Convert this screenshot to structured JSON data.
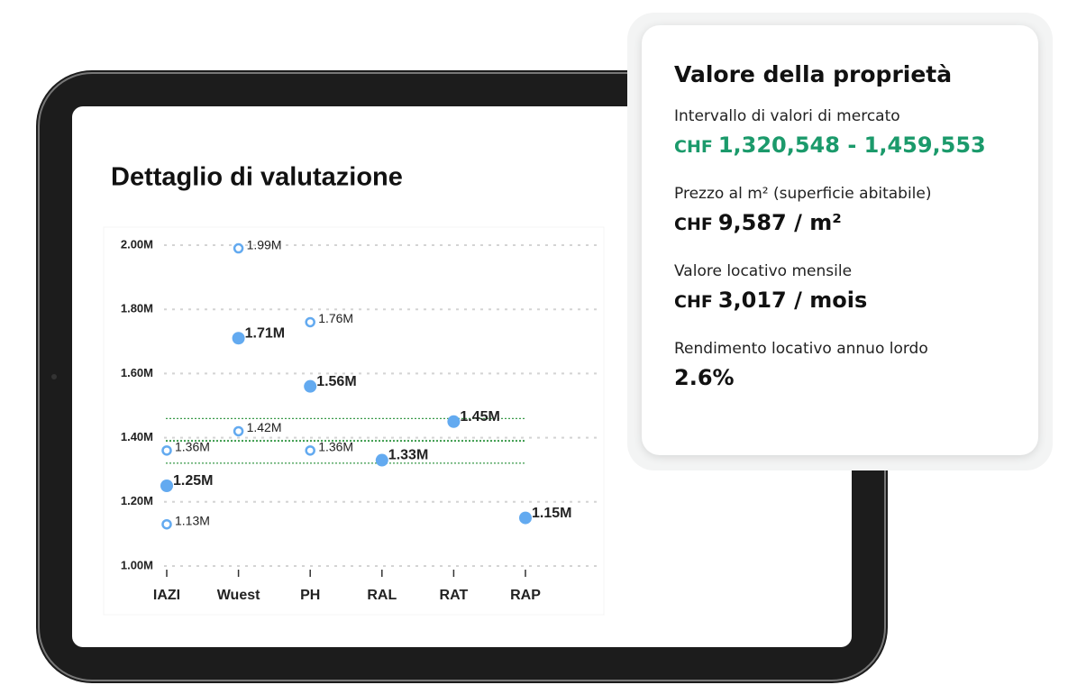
{
  "chart_data": {
    "type": "scatter",
    "title": "Dettaglio di valutazione",
    "categories": [
      "IAZI",
      "Wuest",
      "PH",
      "RAL",
      "RAT",
      "RAP"
    ],
    "series": [
      {
        "style": "filled",
        "color": "#63aaf0",
        "values": [
          1250000,
          1710000,
          1560000,
          1330000,
          1450000,
          1150000
        ],
        "value_labels": [
          "1.25M",
          "1.71M",
          "1.56M",
          "1.33M",
          "1.45M",
          "1.15M"
        ]
      },
      {
        "style": "hollow",
        "color": "#63aaf0",
        "values": [
          1360000,
          1990000,
          1760000,
          null,
          null,
          null
        ],
        "value_labels": [
          "1.36M",
          "1.99M",
          "1.76M",
          null,
          null,
          null
        ]
      },
      {
        "style": "hollow",
        "color": "#63aaf0",
        "values": [
          1130000,
          1420000,
          1360000,
          null,
          null,
          null
        ],
        "value_labels": [
          "1.13M",
          "1.42M",
          "1.36M",
          null,
          null,
          null
        ]
      }
    ],
    "reference_lines": [
      1320548,
      1390051,
      1459553
    ],
    "reference_color": "#3a9a4a",
    "ylim": [
      1000000,
      2000000
    ],
    "yticks": [
      {
        "value": 1000000,
        "label": "1.00M"
      },
      {
        "value": 1200000,
        "label": "1.20M"
      },
      {
        "value": 1400000,
        "label": "1.40M"
      },
      {
        "value": 1600000,
        "label": "1.60M"
      },
      {
        "value": 1800000,
        "label": "1.80M"
      },
      {
        "value": 2000000,
        "label": "2.00M"
      }
    ],
    "grid": true
  },
  "card": {
    "title": "Valore della proprietà",
    "items": [
      {
        "label": "Intervallo di valori di mercato",
        "prefix": "CHF",
        "value": "1,320,548 - 1,459,553",
        "accent": true
      },
      {
        "label": "Prezzo al m² (superficie abitabile)",
        "prefix": "CHF",
        "value": "9,587 / m²",
        "accent": false
      },
      {
        "label": "Valore locativo mensile",
        "prefix": "CHF",
        "value": "3,017 / mois",
        "accent": false
      },
      {
        "label": "Rendimento locativo annuo lordo",
        "prefix": null,
        "value": "2.6%",
        "accent": false
      }
    ]
  }
}
